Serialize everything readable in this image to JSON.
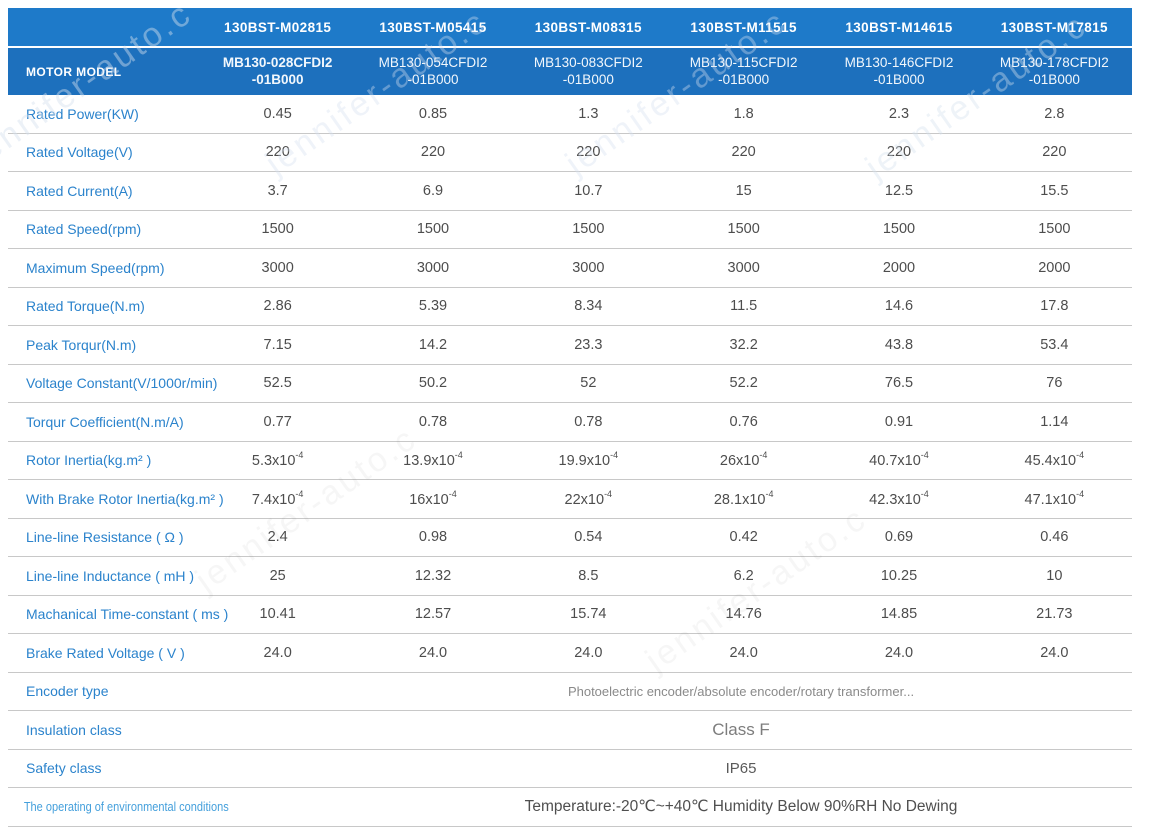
{
  "watermark": {
    "text": "jennifer-auto.c"
  },
  "colors": {
    "header_blue_top": "#1E7AC9",
    "header_blue_bottom": "#1D70BD",
    "label_blue": "#2B83CC",
    "value_gray": "#4D4D4D",
    "divider_gray": "#C8C8C8"
  },
  "table": {
    "motor_model_label": "MOTOR MODEL",
    "columns": [
      {
        "model": "130BST-M02815",
        "code_line1": "MB130-028CFDI2",
        "code_line2": "-01B000"
      },
      {
        "model": "130BST-M05415",
        "code_line1": "MB130-054CFDI2",
        "code_line2": "-01B000"
      },
      {
        "model": "130BST-M08315",
        "code_line1": "MB130-083CFDI2",
        "code_line2": "-01B000"
      },
      {
        "model": "130BST-M11515",
        "code_line1": "MB130-115CFDI2",
        "code_line2": "-01B000"
      },
      {
        "model": "130BST-M14615",
        "code_line1": "MB130-146CFDI2",
        "code_line2": "-01B000"
      },
      {
        "model": "130BST-M17815",
        "code_line1": "MB130-178CFDI2",
        "code_line2": "-01B000"
      }
    ],
    "rows": [
      {
        "label": "Rated Power(KW)",
        "values": [
          "0.45",
          "0.85",
          "1.3",
          "1.8",
          "2.3",
          "2.8"
        ]
      },
      {
        "label": "Rated Voltage(V)",
        "values": [
          "220",
          "220",
          "220",
          "220",
          "220",
          "220"
        ]
      },
      {
        "label": "Rated Current(A)",
        "values": [
          "3.7",
          "6.9",
          "10.7",
          "15",
          "12.5",
          "15.5"
        ]
      },
      {
        "label": "Rated Speed(rpm)",
        "values": [
          "1500",
          "1500",
          "1500",
          "1500",
          "1500",
          "1500"
        ]
      },
      {
        "label": "Maximum Speed(rpm)",
        "values": [
          "3000",
          "3000",
          "3000",
          "3000",
          "2000",
          "2000"
        ]
      },
      {
        "label": "Rated Torque(N.m)",
        "values": [
          "2.86",
          "5.39",
          "8.34",
          "11.5",
          "14.6",
          "17.8"
        ]
      },
      {
        "label": "Peak Torqur(N.m)",
        "values": [
          "7.15",
          "14.2",
          "23.3",
          "32.2",
          "43.8",
          "53.4"
        ]
      },
      {
        "label": "Voltage Constant(V/1000r/min)",
        "values": [
          "52.5",
          "50.2",
          "52",
          "52.2",
          "76.5",
          "76"
        ]
      },
      {
        "label": "Torqur Coefficient(N.m/A)",
        "values": [
          "0.77",
          "0.78",
          "0.78",
          "0.76",
          "0.91",
          "1.14"
        ]
      },
      {
        "label": "Rotor Inertia(kg.m² )",
        "values": [
          {
            "b": "5.3x10",
            "s": "-4"
          },
          {
            "b": "13.9x10",
            "s": "-4"
          },
          {
            "b": "19.9x10",
            "s": "-4"
          },
          {
            "b": "26x10",
            "s": "-4"
          },
          {
            "b": "40.7x10",
            "s": "-4"
          },
          {
            "b": "45.4x10",
            "s": "-4"
          }
        ]
      },
      {
        "label": "With Brake Rotor Inertia(kg.m² )",
        "values": [
          {
            "b": "7.4x10",
            "s": "-4"
          },
          {
            "b": "16x10",
            "s": "-4"
          },
          {
            "b": "22x10",
            "s": "-4"
          },
          {
            "b": "28.1x10",
            "s": "-4"
          },
          {
            "b": "42.3x10",
            "s": "-4"
          },
          {
            "b": "47.1x10",
            "s": "-4"
          }
        ]
      },
      {
        "label": "Line-line Resistance ( Ω )",
        "values": [
          "2.4",
          "0.98",
          "0.54",
          "0.42",
          "0.69",
          "0.46"
        ]
      },
      {
        "label": "Line-line Inductance ( mH )",
        "values": [
          "25",
          "12.32",
          "8.5",
          "6.2",
          "10.25",
          "10"
        ]
      },
      {
        "label": "Machanical Time-constant ( ms )",
        "values": [
          "10.41",
          "12.57",
          "15.74",
          "14.76",
          "14.85",
          "21.73"
        ]
      },
      {
        "label": "Brake Rated Voltage ( V )",
        "values": [
          "24.0",
          "24.0",
          "24.0",
          "24.0",
          "24.0",
          "24.0"
        ]
      }
    ],
    "merged_rows": [
      {
        "label": "Encoder type",
        "value": "Photoelectric encoder/absolute encoder/rotary transformer..."
      },
      {
        "label": "Insulation class",
        "value": "Class F"
      },
      {
        "label": "Safety class",
        "value": "IP65"
      },
      {
        "label": "The operating of environmental conditions",
        "value": "Temperature:-20℃~+40℃  Humidity Below 90%RH No Dewing"
      }
    ]
  }
}
